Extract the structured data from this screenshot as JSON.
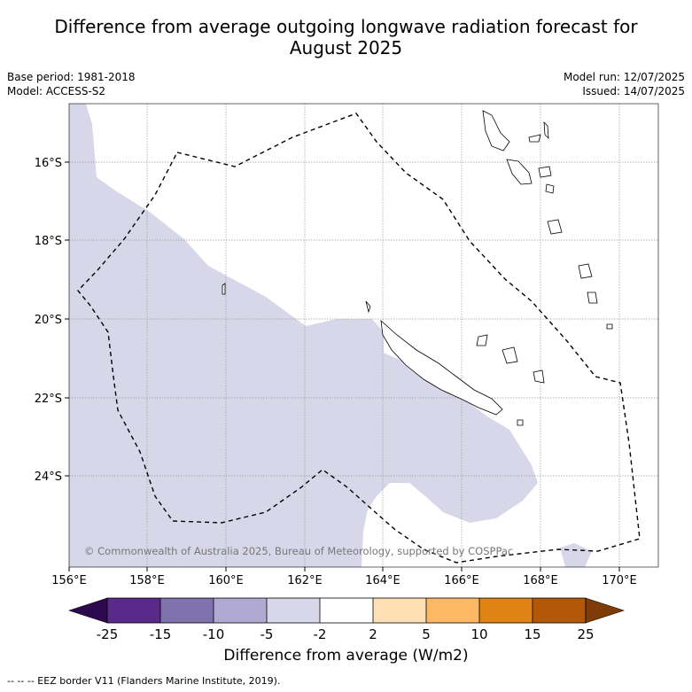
{
  "header": {
    "title_line1": "Difference from average outgoing longwave radiation forecast for",
    "title_line2": "August 2025",
    "base_period": "Base period: 1981-2018",
    "model": "Model: ACCESS-S2",
    "model_run": "Model run: 12/07/2025",
    "issued": "Issued: 14/07/2025"
  },
  "map": {
    "x_ticks": [
      "156°E",
      "158°E",
      "160°E",
      "162°E",
      "164°E",
      "166°E",
      "168°E",
      "170°E"
    ],
    "y_ticks": [
      "16°S",
      "18°S",
      "20°S",
      "22°S",
      "24°S"
    ],
    "copyright": "© Commonwealth of Australia 2025, Bureau of Meteorology, supported by COSPPac",
    "anomaly_fill": "#d7d7e9",
    "colors": {
      "border": "#000000",
      "grid": "#999999"
    }
  },
  "colorbar": {
    "labels": [
      "-25",
      "-15",
      "-10",
      "-5",
      "-2",
      "2",
      "5",
      "10",
      "15",
      "25"
    ],
    "colors": [
      "#2d0a4f",
      "#5a2a8a",
      "#7f72ad",
      "#b0a9d2",
      "#d7d7e9",
      "#ffffff",
      "#fee0b4",
      "#fdb863",
      "#e08214",
      "#b35806",
      "#7f3b08"
    ],
    "title": "Difference from average (W/m2)"
  },
  "footer": {
    "legend": "--  --  -- EEZ border V11 (Flanders Marine Institute, 2019)."
  }
}
